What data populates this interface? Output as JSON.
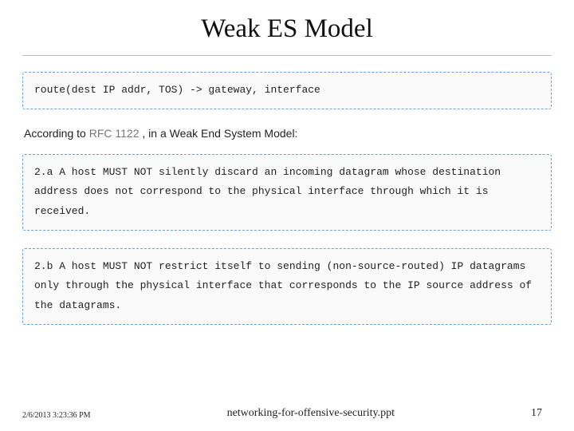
{
  "title": "Weak ES Model",
  "title_fontsize": 33,
  "box_border_color": "#6aa2d8",
  "box_bg_color": "#fafafa",
  "code_fontsize": 13,
  "body_fontsize": 14,
  "box1": {
    "text": "route(dest IP addr, TOS) -> gateway, interface"
  },
  "intro": {
    "prefix": "According to ",
    "rfc": "RFC 1122",
    "suffix": " , in a Weak End System Model:"
  },
  "box2": {
    "text": "2.a A host MUST NOT silently discard an incoming datagram whose destination address does not correspond to the physical interface through which it is received."
  },
  "box3": {
    "text": "2.b A host MUST NOT restrict itself to sending (non-source-routed) IP datagrams only through the physical interface that corresponds to the IP source address of the datagrams."
  },
  "footer": {
    "timestamp": "2/6/2013 3:23:36 PM",
    "filename": "networking-for-offensive-security.ppt",
    "page": "17"
  }
}
